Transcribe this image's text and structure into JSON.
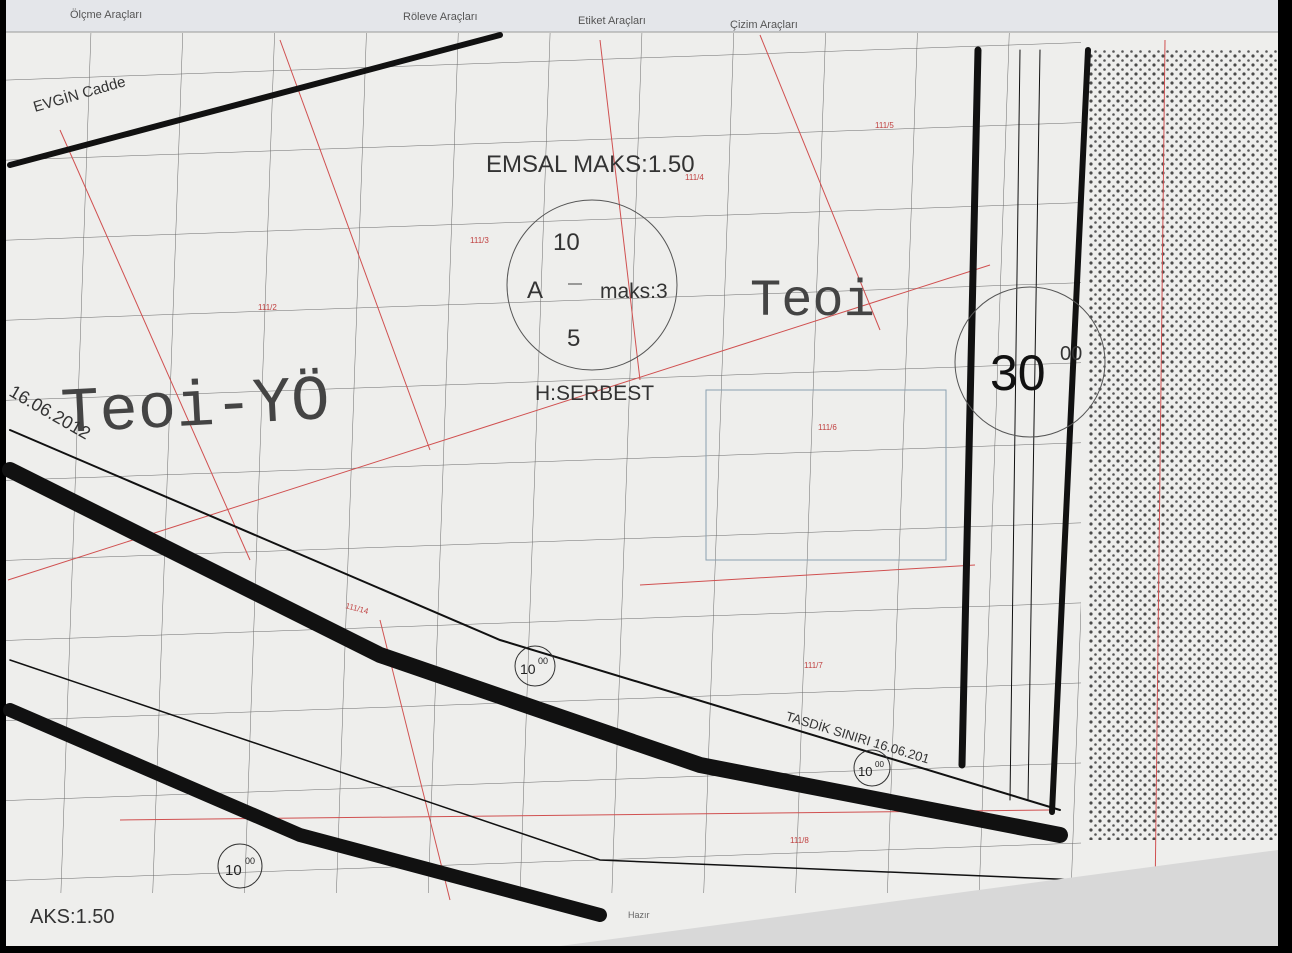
{
  "toolbar": {
    "groups": [
      "Ölçme Araçları",
      "Röleve Araçları",
      "Etiket Araçları",
      "Çizim Araçları"
    ]
  },
  "map": {
    "street_name": "EVGİN Cadde",
    "emsal": "EMSAL MAKS:1.50",
    "zone": {
      "top": "10",
      "left": "A",
      "right": "maks:3",
      "bottom": "5"
    },
    "height": "H:SERBEST",
    "zone_code_right": "Teoi",
    "zone_code_left": "Teoi-YÖ",
    "date_left": "16.06.2012",
    "road_width": {
      "value": "30",
      "sup": "00"
    },
    "small_width": {
      "value": "10",
      "sup": "00"
    },
    "boundary": "TASDİK SINIRI 16.06.201",
    "emsal_partial": "AKS:1.50",
    "parcels": [
      "111/3",
      "111/2",
      "111/4",
      "111/5",
      "111/6",
      "111/7",
      "111/8",
      "111/14"
    ]
  },
  "status": "Hazır"
}
